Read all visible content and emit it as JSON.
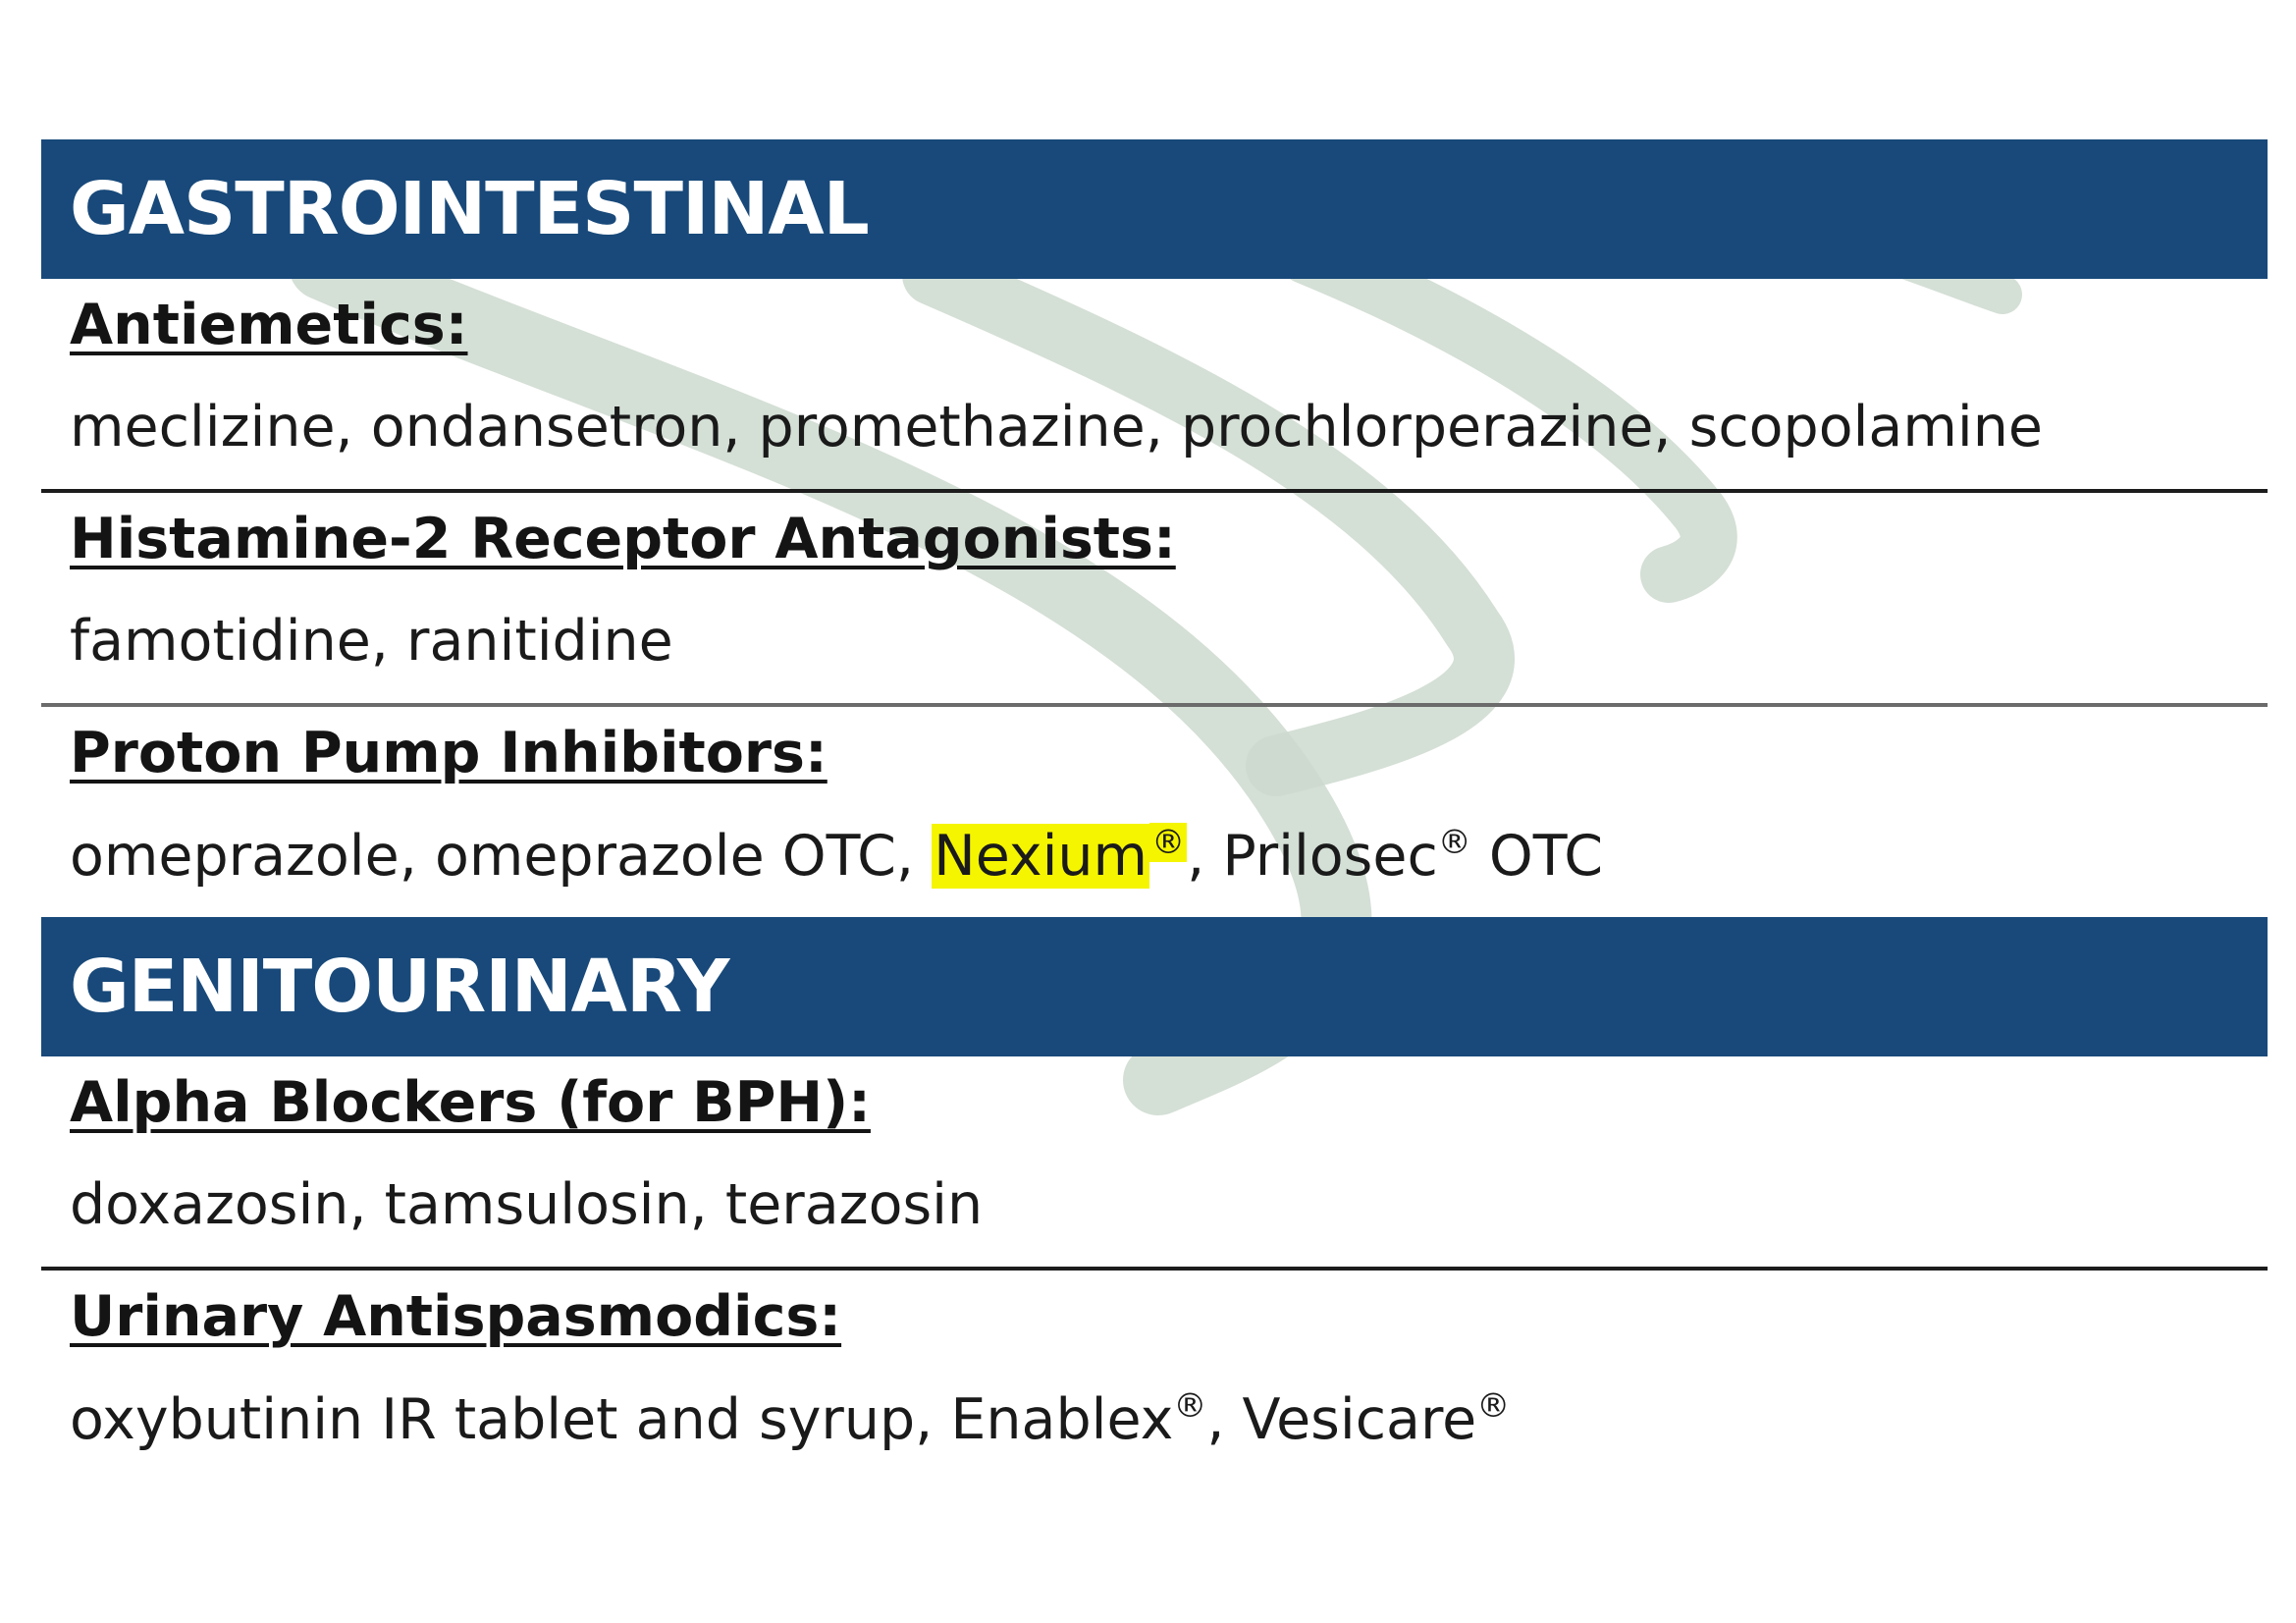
{
  "colors": {
    "header_bg": "#18497a",
    "header_text": "#ffffff",
    "highlight": "#f5f500",
    "watermark": "#ccd9cf"
  },
  "sections": [
    {
      "title": "GASTROINTESTINAL",
      "categories": [
        {
          "title": "Antiemetics:",
          "drugs": [
            {
              "text": "meclizine, ondansetron, promethazine, prochlorperazine, scopolamine"
            }
          ]
        },
        {
          "title": "Histamine-2 Receptor Antagonists:",
          "drugs": [
            {
              "text": "famotidine, ranitidine"
            }
          ]
        },
        {
          "title": "Proton Pump Inhibitors:",
          "drugs": [
            {
              "text": "omeprazole, omeprazole OTC, "
            },
            {
              "text": "Nexium",
              "highlighted": true
            },
            {
              "text": "®",
              "superscript": true,
              "highlighted": true
            },
            {
              "text": ", Prilosec"
            },
            {
              "text": "®",
              "superscript": true
            },
            {
              "text": " OTC"
            }
          ]
        }
      ]
    },
    {
      "title": "GENITOURINARY",
      "categories": [
        {
          "title": "Alpha Blockers (for BPH):",
          "drugs": [
            {
              "text": "doxazosin, tamsulosin, terazosin"
            }
          ]
        },
        {
          "title": "Urinary Antispasmodics:",
          "drugs": [
            {
              "text": "oxybutinin IR tablet and syrup, Enablex"
            },
            {
              "text": "®",
              "superscript": true
            },
            {
              "text": ", Vesicare"
            },
            {
              "text": "®",
              "superscript": true
            }
          ]
        }
      ]
    }
  ]
}
